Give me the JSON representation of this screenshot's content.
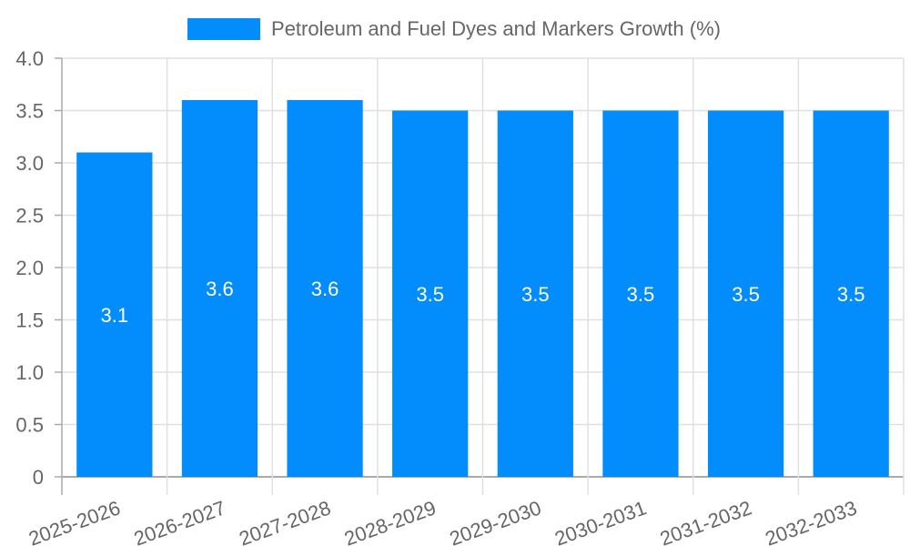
{
  "chart_data": {
    "type": "bar",
    "title": "",
    "legend": [
      "Petroleum and Fuel Dyes and Markers Growth (%)"
    ],
    "legend_position": "top",
    "categories": [
      "2025-2026",
      "2026-2027",
      "2027-2028",
      "2028-2029",
      "2029-2030",
      "2030-2031",
      "2031-2032",
      "2032-2033"
    ],
    "series": [
      {
        "name": "Petroleum and Fuel Dyes and Markers Growth (%)",
        "values": [
          3.1,
          3.6,
          3.6,
          3.5,
          3.5,
          3.5,
          3.5,
          3.5
        ],
        "color": "#038cfc"
      }
    ],
    "data_labels": [
      "3.1",
      "3.6",
      "3.6",
      "3.5",
      "3.5",
      "3.5",
      "3.5",
      "3.5"
    ],
    "xlabel": "",
    "ylabel": "",
    "ylim": [
      0,
      4.0
    ],
    "yticks": [
      "0",
      "0.5",
      "1.0",
      "1.5",
      "2.0",
      "2.5",
      "3.0",
      "3.5",
      "4.0"
    ],
    "grid": true
  },
  "legend": {
    "label": "Petroleum and Fuel Dyes and Markers Growth (%)",
    "color": "#038cfc"
  }
}
